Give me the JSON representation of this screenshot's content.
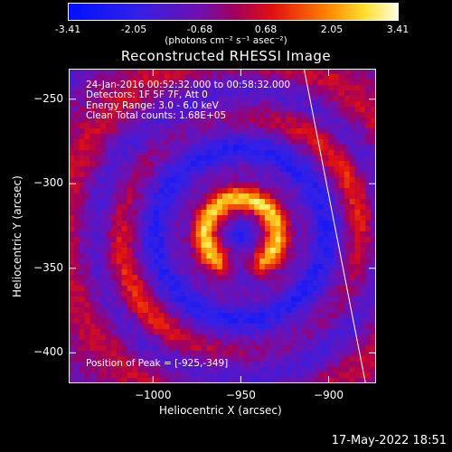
{
  "colorbar": {
    "ticks": [
      "-3.41",
      "-2.05",
      "-0.68",
      "0.68",
      "2.05",
      "3.41"
    ],
    "unit_label": "(photons cm⁻² s⁻¹ asec⁻²)"
  },
  "chart_data": {
    "type": "heatmap",
    "title": "Reconstructed RHESSI Image",
    "xlabel": "Heliocentric X (arcsec)",
    "ylabel": "Heliocentric Y (arcsec)",
    "xlim": [
      -1048,
      -873
    ],
    "ylim": [
      -418,
      -232
    ],
    "xticks": [
      "-1000",
      "-950",
      "-900"
    ],
    "yticks": [
      "-250",
      "-300",
      "-350",
      "-400"
    ],
    "colorbar_range": [
      -3.41,
      3.41
    ],
    "colormap": "blue-purple-red-yellow-white",
    "limb_line": [
      [
        -914,
        -232
      ],
      [
        -879,
        -418
      ]
    ],
    "annotations": [
      "24-Jan-2016 00:52:32.000 to 00:58:32.000",
      "Detectors: 1F 5F 7F, Att 0",
      "Energy Range: 3.0 - 6.0 keV",
      "Clean    Total counts: 1.68E+05"
    ],
    "peak_label": "Position of Peak = [-925,-349]",
    "peak": [
      -925,
      -349
    ]
  },
  "timestamp": "17-May-2022 18:51"
}
